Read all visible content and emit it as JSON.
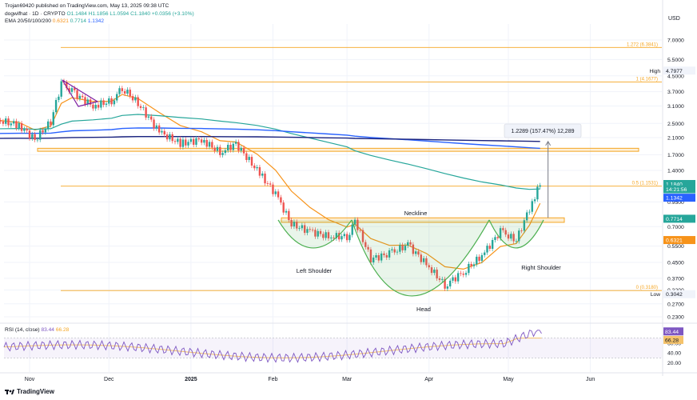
{
  "publisher_line": "Trojan69420 published on TradingView.com, May 13, 2025 09:38 UTC",
  "symbol_line": {
    "name": "dogwifhat · 1D · CRYPTO",
    "open": "O1.1484",
    "high": "H1.1856",
    "low": "L1.0594",
    "close": "C1.1840",
    "change": "+0.0356 (+3.10%)"
  },
  "ema_line": {
    "label": "EMA 20/50/100/200",
    "v20": "0.6321",
    "v50": "0.7714",
    "v100": "1.1342"
  },
  "rsi_line": {
    "label": "RSI (14, close)",
    "value": "83.44",
    "ma": "66.28"
  },
  "currency": "USD",
  "brand": "TradingView",
  "colors": {
    "up": "#26a69a",
    "down": "#ef5350",
    "ema20": "#f7931a",
    "ema50": "#26a69a",
    "ema100": "#2962ff",
    "ema200": "#1a237e",
    "fib": "#f5a623",
    "pattern": "#4caf50",
    "rsi": "#7e57c2",
    "rsi_ma": "#f5c36b"
  },
  "chart_data": {
    "type": "candlestick",
    "y_scale": "log",
    "y_ticks": [
      "7.0000",
      "5.5000",
      "4.5000",
      "3.7000",
      "3.1000",
      "2.5000",
      "2.1000",
      "1.7000",
      "1.4000",
      "0.9500",
      "0.7000",
      "0.5500",
      "0.4500",
      "0.3700",
      "0.3200",
      "0.2700",
      "0.2300"
    ],
    "x_ticks": [
      "Nov",
      "Dec",
      "2025",
      "Feb",
      "Mar",
      "Apr",
      "May",
      "Jun"
    ],
    "price_badges": [
      {
        "label": "High",
        "value": "4.7977",
        "kind": "high"
      },
      {
        "label": "",
        "value": "1.1840",
        "kind": "last"
      },
      {
        "label": "",
        "value": "14:21:56",
        "kind": "timer"
      },
      {
        "label": "",
        "value": "1.1342",
        "kind": "ema100"
      },
      {
        "label": "",
        "value": "0.7714",
        "kind": "ema50"
      },
      {
        "label": "",
        "value": "0.6321",
        "kind": "ema20"
      },
      {
        "label": "Low",
        "value": "0.3042",
        "kind": "low"
      }
    ],
    "fib_levels": [
      {
        "label": "1.272 (6.3841)",
        "price": 6.3841
      },
      {
        "label": "1 (4.1677)",
        "price": 4.1677
      },
      {
        "label": "0.5 (1.1531)",
        "price": 1.1531
      },
      {
        "label": "0 (0.3180)",
        "price": 0.318
      }
    ],
    "resistance_zone": {
      "top": 1.84,
      "bottom": 1.79
    },
    "neckline_zone": {
      "top": 0.78,
      "bottom": 0.745
    },
    "measure_label": "1.2289 (157.47%) 12,289",
    "pattern_labels": [
      "Neckline",
      "Left Shoulder",
      "Head",
      "Right Shoulder"
    ],
    "rsi_ticks": [
      "60.00",
      "40.00",
      "20.00"
    ],
    "rsi_badges": [
      "83.44",
      "66.28"
    ],
    "close_series": [
      {
        "date": "2024-10-20",
        "close": 2.6
      },
      {
        "date": "2024-10-28",
        "close": 2.45
      },
      {
        "date": "2024-11-03",
        "close": 2.05
      },
      {
        "date": "2024-11-09",
        "close": 2.55
      },
      {
        "date": "2024-11-13",
        "close": 4.1
      },
      {
        "date": "2024-11-17",
        "close": 3.7
      },
      {
        "date": "2024-11-25",
        "close": 3.1
      },
      {
        "date": "2024-12-02",
        "close": 3.3
      },
      {
        "date": "2024-12-06",
        "close": 3.9
      },
      {
        "date": "2024-12-12",
        "close": 3.2
      },
      {
        "date": "2024-12-20",
        "close": 2.25
      },
      {
        "date": "2024-12-28",
        "close": 1.95
      },
      {
        "date": "2025-01-05",
        "close": 2.05
      },
      {
        "date": "2025-01-12",
        "close": 1.75
      },
      {
        "date": "2025-01-18",
        "close": 1.95
      },
      {
        "date": "2025-01-26",
        "close": 1.4
      },
      {
        "date": "2025-02-02",
        "close": 1.05
      },
      {
        "date": "2025-02-08",
        "close": 0.72
      },
      {
        "date": "2025-02-15",
        "close": 0.66
      },
      {
        "date": "2025-02-22",
        "close": 0.62
      },
      {
        "date": "2025-03-01",
        "close": 0.62
      },
      {
        "date": "2025-03-04",
        "close": 0.75
      },
      {
        "date": "2025-03-10",
        "close": 0.47
      },
      {
        "date": "2025-03-17",
        "close": 0.5
      },
      {
        "date": "2025-03-24",
        "close": 0.56
      },
      {
        "date": "2025-03-31",
        "close": 0.44
      },
      {
        "date": "2025-04-07",
        "close": 0.34
      },
      {
        "date": "2025-04-14",
        "close": 0.4
      },
      {
        "date": "2025-04-21",
        "close": 0.49
      },
      {
        "date": "2025-04-28",
        "close": 0.66
      },
      {
        "date": "2025-05-04",
        "close": 0.59
      },
      {
        "date": "2025-05-09",
        "close": 0.88
      },
      {
        "date": "2025-05-13",
        "close": 1.184
      }
    ]
  }
}
